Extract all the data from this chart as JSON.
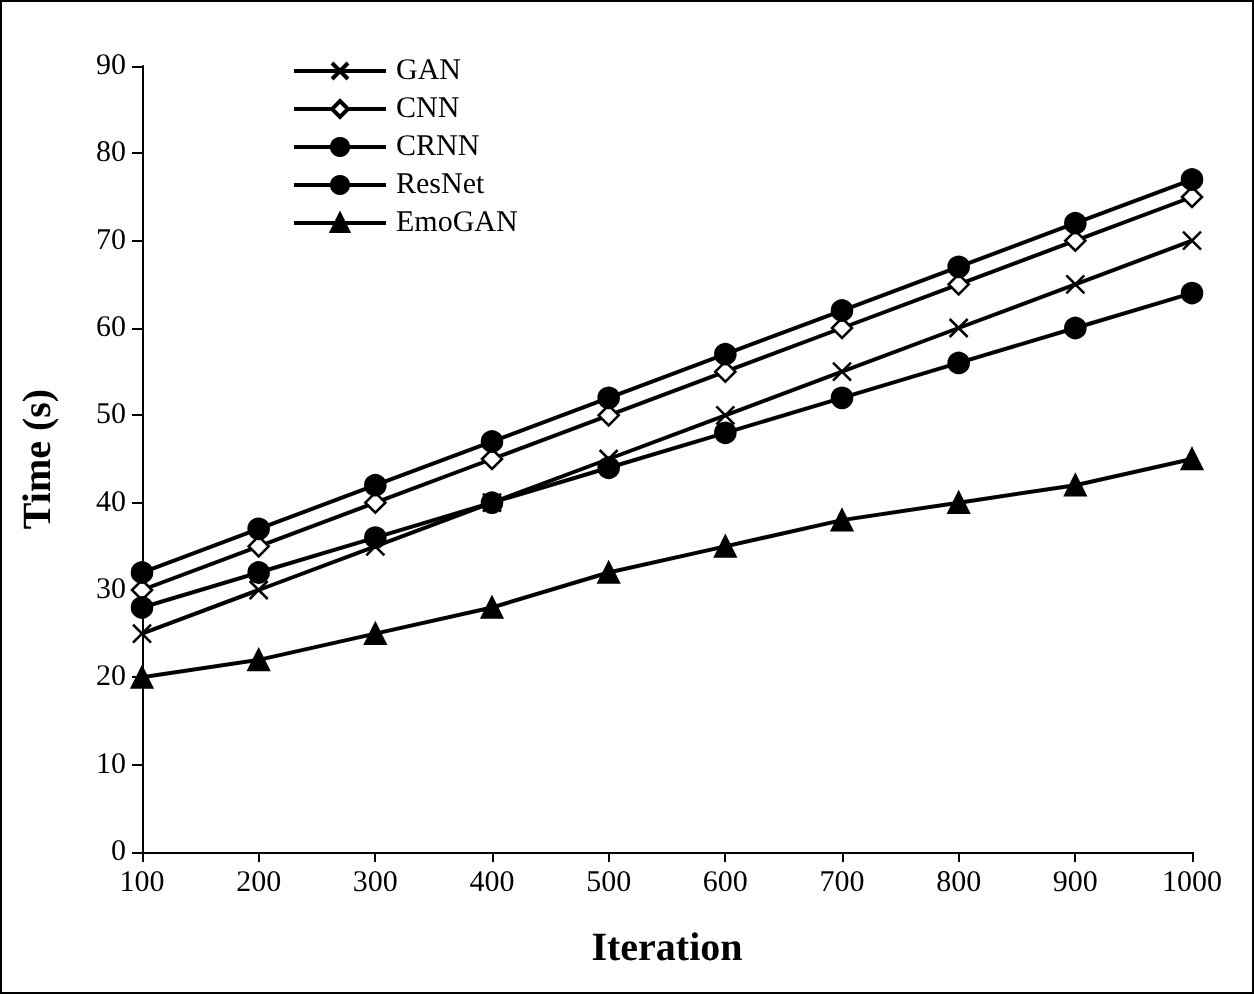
{
  "chart_data": {
    "type": "line",
    "xlabel": "Iteration",
    "ylabel": "Time (s)",
    "x": [
      100,
      200,
      300,
      400,
      500,
      600,
      700,
      800,
      900,
      1000
    ],
    "xlim": [
      100,
      1000
    ],
    "xticks": [
      100,
      200,
      300,
      400,
      500,
      600,
      700,
      800,
      900,
      1000
    ],
    "ylim": [
      0,
      90
    ],
    "yticks": [
      0,
      10,
      20,
      30,
      40,
      50,
      60,
      70,
      80,
      90
    ],
    "grid": false,
    "legend": "top left",
    "line_style": "solid",
    "series": [
      {
        "name": "GAN",
        "color": "#000000",
        "marker": "cross",
        "values": [
          25,
          30,
          35,
          40,
          45,
          50,
          55,
          60,
          65,
          70
        ]
      },
      {
        "name": "CNN",
        "color": "#000000",
        "marker": "diamond",
        "values": [
          30,
          35,
          40,
          45,
          50,
          55,
          60,
          65,
          70,
          75
        ]
      },
      {
        "name": "CRNN",
        "color": "#000000",
        "marker": "circle",
        "values": [
          28,
          32,
          36,
          40,
          44,
          48,
          52,
          56,
          60,
          64
        ]
      },
      {
        "name": "ResNet",
        "color": "#000000",
        "marker": "circle",
        "values": [
          32,
          37,
          42,
          47,
          52,
          57,
          62,
          67,
          72,
          77
        ]
      },
      {
        "name": "EmoGAN",
        "color": "#000000",
        "marker": "triangle",
        "values": [
          20,
          22,
          25,
          28,
          32,
          35,
          38,
          40,
          42,
          45
        ]
      }
    ]
  }
}
